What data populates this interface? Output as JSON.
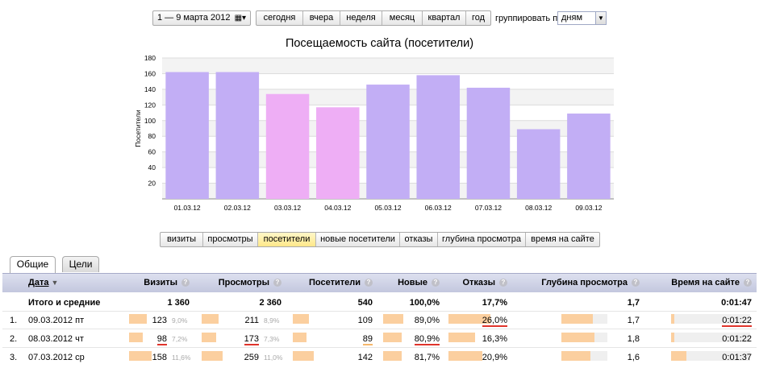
{
  "toolbar": {
    "date_range": "1 — 9 марта 2012",
    "calendar_icon": "calendar-icon",
    "periods": [
      "сегодня",
      "вчера",
      "неделя",
      "месяц",
      "квартал",
      "год"
    ],
    "group_label": "группировать по",
    "group_value": "дням"
  },
  "chart_data": {
    "type": "bar",
    "title": "Посещаемость сайта (посетители)",
    "ylabel": "Посетители",
    "xlabel": "",
    "ylim": [
      0,
      180
    ],
    "yticks": [
      20,
      40,
      60,
      80,
      100,
      120,
      140,
      160,
      180
    ],
    "categories": [
      "01.03.12",
      "02.03.12",
      "03.03.12",
      "04.03.12",
      "05.03.12",
      "06.03.12",
      "07.03.12",
      "08.03.12",
      "09.03.12"
    ],
    "values": [
      162,
      162,
      134,
      117,
      146,
      158,
      142,
      89,
      109
    ],
    "weekend": [
      false,
      false,
      true,
      true,
      false,
      false,
      false,
      false,
      false
    ],
    "colors": {
      "weekday": "#c2aef5",
      "weekend": "#eeaef5"
    },
    "grid": true
  },
  "metrics": {
    "buttons": [
      "визиты",
      "просмотры",
      "посетители",
      "новые посетители",
      "отказы",
      "глубина просмотра",
      "время на сайте"
    ],
    "active_index": 2
  },
  "tabs": [
    "Общие",
    "Цели"
  ],
  "table": {
    "headers": {
      "date": "Дата",
      "visits": "Визиты",
      "views": "Просмотры",
      "visitors": "Посетители",
      "new": "Новые",
      "bounces": "Отказы",
      "depth": "Глубина просмотра",
      "time": "Время на сайте"
    },
    "sort_icon": "sort-desc-icon",
    "help_icon": "help-icon",
    "totals": {
      "label": "Итого и средние",
      "visits": "1 360",
      "views": "2 360",
      "visitors": "540",
      "new": "100,0%",
      "bounces": "17,7%",
      "depth": "1,7",
      "time": "0:01:47"
    },
    "rows": [
      {
        "n": "1.",
        "date": "09.03.2012 пт",
        "visits": "123",
        "visits_pct": "9,0%",
        "visits_share": 0.09,
        "views": "211",
        "views_pct": "8,9%",
        "views_share": 0.089,
        "visitors": "109",
        "visitors_share": 0.2,
        "new": "89,0%",
        "new_share": 0.89,
        "bounces": "26,0%",
        "bounces_share": 0.26,
        "depth": "1,7",
        "depth_share": 0.68,
        "time": "0:01:22",
        "time_share": 0.04
      },
      {
        "n": "2.",
        "date": "08.03.2012 чт",
        "visits": "98",
        "visits_pct": "7,2%",
        "visits_share": 0.072,
        "views": "173",
        "views_pct": "7,3%",
        "views_share": 0.073,
        "visitors": "89",
        "visitors_share": 0.165,
        "new": "80,9%",
        "new_share": 0.809,
        "bounces": "16,3%",
        "bounces_share": 0.163,
        "depth": "1,8",
        "depth_share": 0.72,
        "time": "0:01:22",
        "time_share": 0.04
      },
      {
        "n": "3.",
        "date": "07.03.2012 ср",
        "visits": "158",
        "visits_pct": "11,6%",
        "visits_share": 0.116,
        "views": "259",
        "views_pct": "11,0%",
        "views_share": 0.11,
        "visitors": "142",
        "visitors_share": 0.263,
        "new": "81,7%",
        "new_share": 0.817,
        "bounces": "20,9%",
        "bounces_share": 0.209,
        "depth": "1,6",
        "depth_share": 0.64,
        "time": "0:01:37",
        "time_share": 0.19
      }
    ]
  }
}
